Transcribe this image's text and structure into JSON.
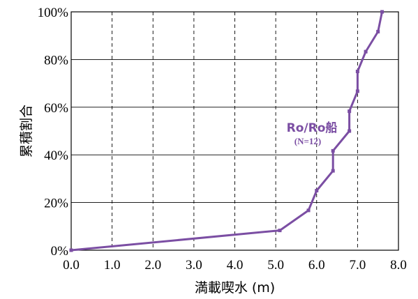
{
  "chart_data": {
    "type": "line",
    "title": "",
    "xlabel": "満載喫水 (m)",
    "ylabel": "累積割合",
    "xlim": [
      0,
      8
    ],
    "ylim": [
      0,
      100
    ],
    "x_ticks": [
      "0.0",
      "1.0",
      "2.0",
      "3.0",
      "4.0",
      "5.0",
      "6.0",
      "7.0",
      "8.0"
    ],
    "y_ticks": [
      "0%",
      "20%",
      "40%",
      "60%",
      "80%",
      "100%"
    ],
    "grid": {
      "vertical": "dashed",
      "horizontal": "solid"
    },
    "series": [
      {
        "name": "Ro/Ro船",
        "annotation": "(N=12)",
        "color": "#7b4ea3",
        "x": [
          0.0,
          5.1,
          5.8,
          6.0,
          6.4,
          6.4,
          6.8,
          6.8,
          7.0,
          7.0,
          7.2,
          7.5,
          7.6
        ],
        "y": [
          0,
          8.3,
          16.7,
          25.0,
          33.3,
          41.7,
          50.0,
          58.3,
          66.7,
          75.0,
          83.3,
          91.7,
          100
        ]
      }
    ]
  }
}
